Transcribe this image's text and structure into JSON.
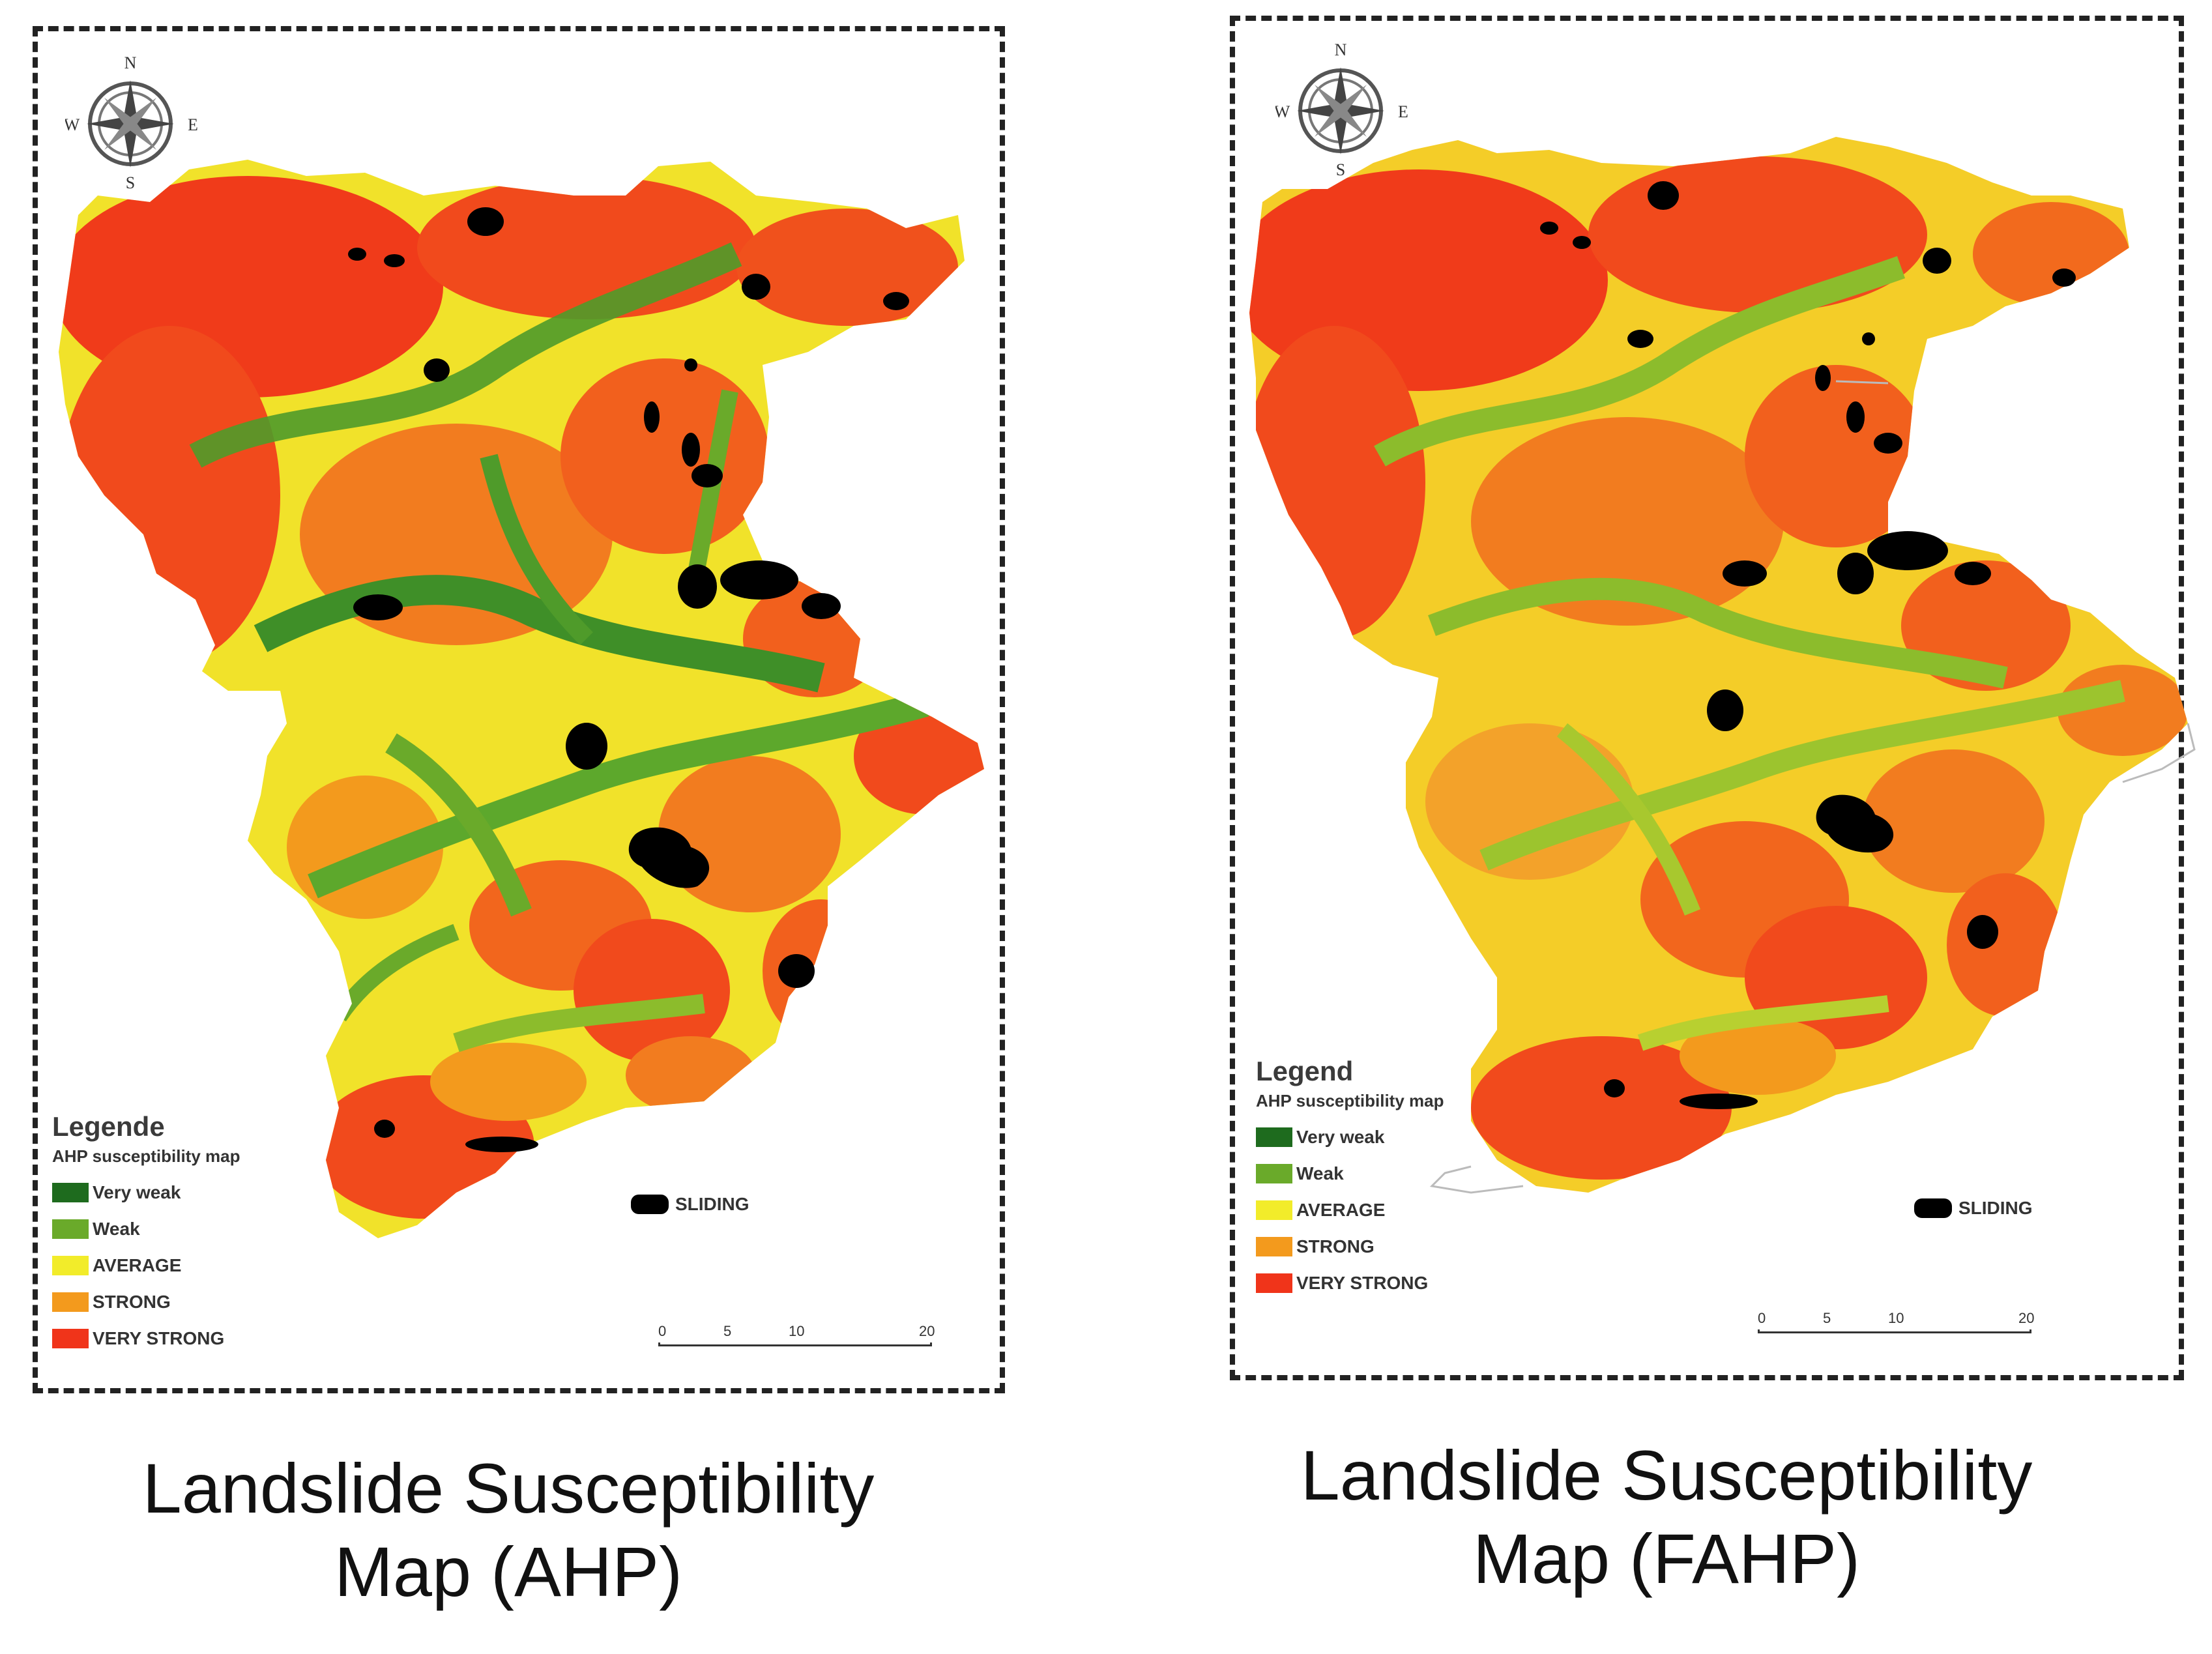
{
  "maps": [
    {
      "id": "ahp",
      "caption_line1": "Landslide Susceptibility",
      "caption_line2": "Map (AHP)",
      "legend_title": "Legende",
      "legend_subtitle": "AHP susceptibility map",
      "sliding_label": "SLIDING",
      "compass": {
        "n": "N",
        "s": "S",
        "e": "E",
        "w": "W"
      },
      "scale": [
        "0",
        "5",
        "10",
        "20"
      ]
    },
    {
      "id": "fahp",
      "caption_line1": "Landslide Susceptibility",
      "caption_line2": "Map (FAHP)",
      "legend_title": "Legend",
      "legend_subtitle": "AHP susceptibility map",
      "sliding_label": "SLIDING",
      "compass": {
        "n": "N",
        "s": "S",
        "e": "E",
        "w": "W"
      },
      "scale": [
        "0",
        "5",
        "10",
        "20"
      ]
    }
  ],
  "legend_classes": [
    {
      "label": "Very weak",
      "color": "#1e6b1e"
    },
    {
      "label": "Weak",
      "color": "#6aaa2a"
    },
    {
      "label": "AVERAGE",
      "color": "#f2ec2a"
    },
    {
      "label": "STRONG",
      "color": "#f39a1d"
    },
    {
      "label": "VERY STRONG",
      "color": "#f0341a"
    }
  ],
  "sliding_color": "#000000"
}
